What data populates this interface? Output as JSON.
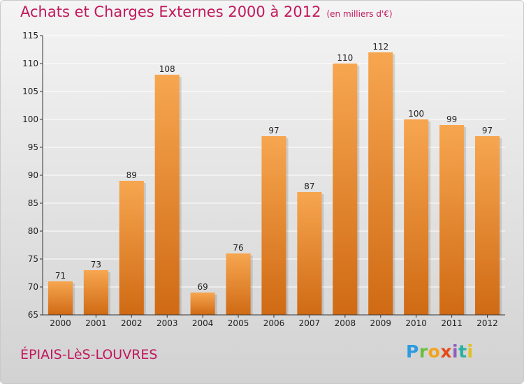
{
  "header": {
    "title": "Achats et Charges Externes 2000 à 2012",
    "unit": "(en milliers d'€)"
  },
  "footer": {
    "town": "ÉPIAIS-LèS-LOUVRES",
    "logo": "Proxiti"
  },
  "colors": {
    "title": "#c2185b",
    "bar_light": "#f7a650",
    "bar_dark": "#d06a14"
  },
  "chart_data": {
    "type": "bar",
    "title": "Achats et Charges Externes 2000 à 2012",
    "subtitle": "(en milliers d'€)",
    "categories": [
      "2000",
      "2001",
      "2002",
      "2003",
      "2004",
      "2005",
      "2006",
      "2007",
      "2008",
      "2009",
      "2010",
      "2011",
      "2012"
    ],
    "values": [
      71,
      73,
      89,
      108,
      69,
      76,
      97,
      87,
      110,
      112,
      100,
      99,
      97
    ],
    "ylim": [
      65,
      115
    ],
    "yticks": [
      65,
      70,
      75,
      80,
      85,
      90,
      95,
      100,
      105,
      110,
      115
    ],
    "grid": true,
    "data_labels": true
  }
}
